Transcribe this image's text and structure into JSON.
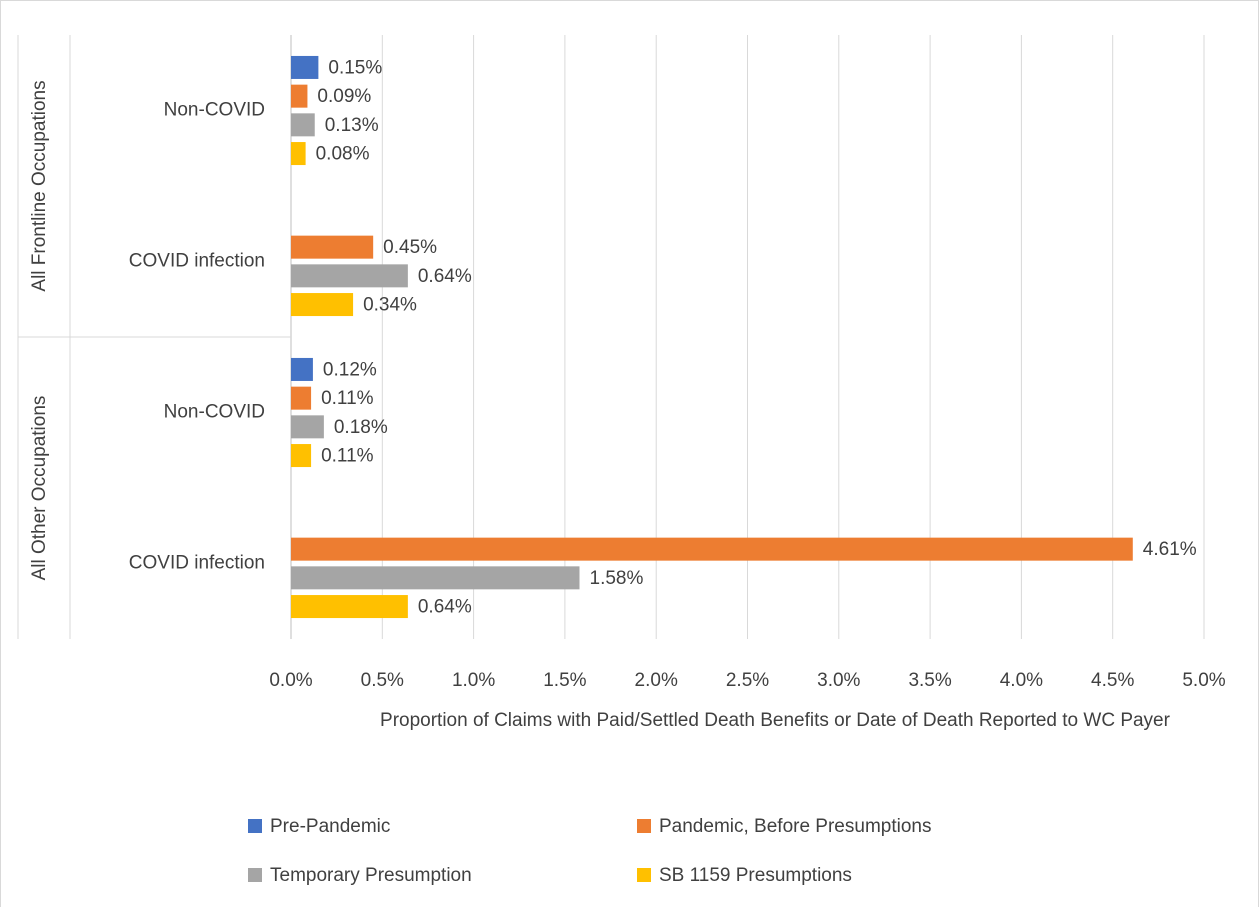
{
  "chart_data": {
    "type": "bar",
    "orientation": "horizontal",
    "groups": [
      "All Frontline Occupations",
      "All Other Occupations"
    ],
    "categories": [
      "Non-COVID",
      "COVID infection",
      "Non-COVID",
      "COVID infection"
    ],
    "series": [
      {
        "name": "Pre-Pandemic",
        "color": "#4472c4",
        "values": [
          0.15,
          null,
          0.12,
          null
        ],
        "value_labels": [
          "0.15%",
          null,
          "0.12%",
          null
        ]
      },
      {
        "name": "Pandemic, Before Presumptions",
        "color": "#ed7d31",
        "values": [
          0.09,
          0.45,
          0.11,
          4.61
        ],
        "value_labels": [
          "0.09%",
          "0.45%",
          "0.11%",
          "4.61%"
        ]
      },
      {
        "name": "Temporary Presumption",
        "color": "#a5a5a5",
        "values": [
          0.13,
          0.64,
          0.18,
          1.58
        ],
        "value_labels": [
          "0.13%",
          "0.64%",
          "0.18%",
          "1.58%"
        ]
      },
      {
        "name": "SB 1159 Presumptions",
        "color": "#ffc000",
        "values": [
          0.08,
          0.34,
          0.11,
          0.64
        ],
        "value_labels": [
          "0.08%",
          "0.34%",
          "0.11%",
          "0.64%"
        ]
      }
    ],
    "x_label": "Proportion of Claims with Paid/Settled Death Benefits or Date of Death Reported to WC Payer",
    "xlim": [
      0,
      5
    ],
    "xticks": [
      {
        "value": 0,
        "label": "0.0%"
      },
      {
        "value": 0.5,
        "label": "0.5%"
      },
      {
        "value": 1,
        "label": "1.0%"
      },
      {
        "value": 1.5,
        "label": "1.5%"
      },
      {
        "value": 2,
        "label": "2.0%"
      },
      {
        "value": 2.5,
        "label": "2.5%"
      },
      {
        "value": 3,
        "label": "3.0%"
      },
      {
        "value": 3.5,
        "label": "3.5%"
      },
      {
        "value": 4,
        "label": "4.0%"
      },
      {
        "value": 4.5,
        "label": "4.5%"
      },
      {
        "value": 5,
        "label": "5.0%"
      }
    ],
    "grid": true,
    "legend": "bottom"
  }
}
